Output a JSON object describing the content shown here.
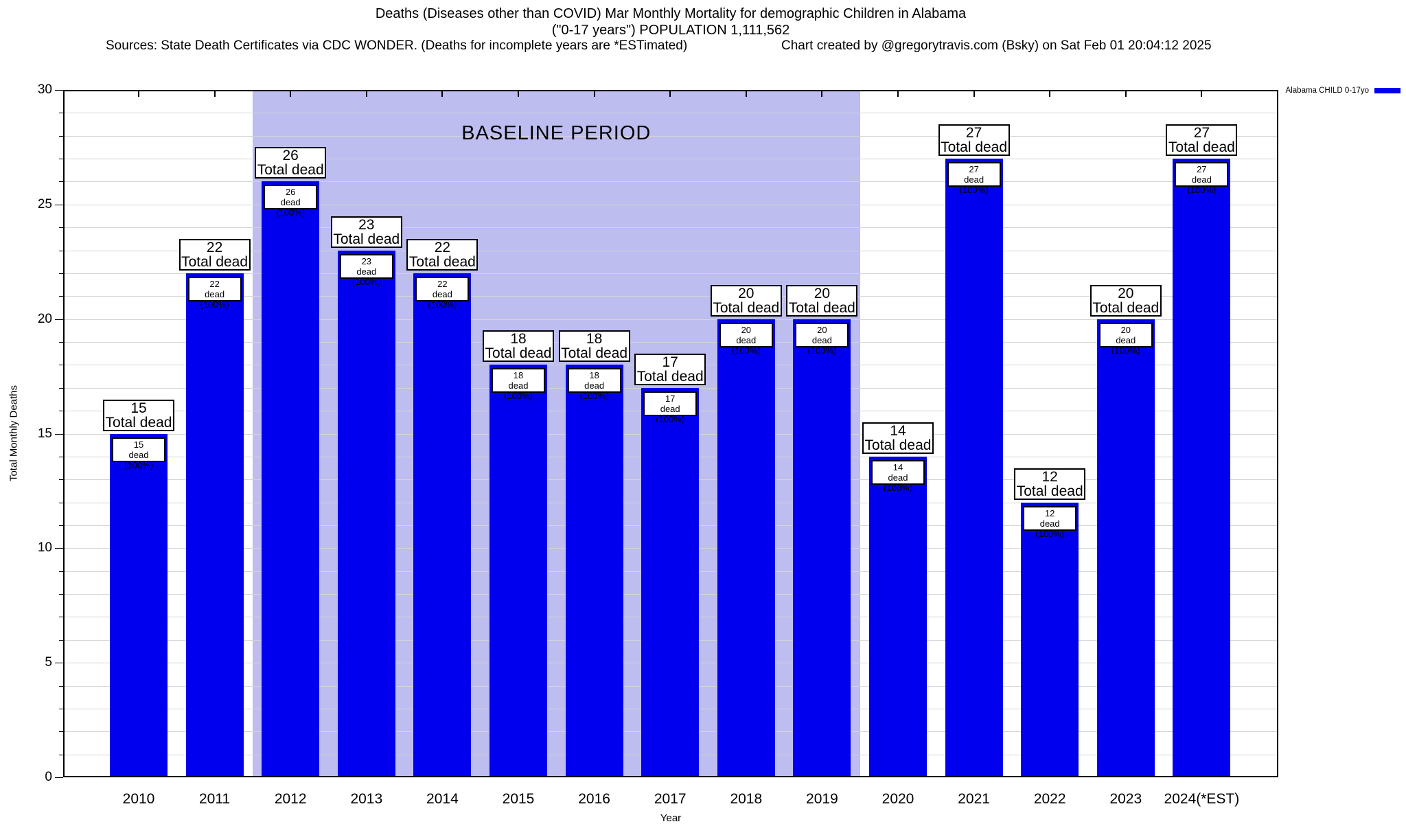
{
  "header": {
    "sources": "Sources: State Death Certificates via CDC WONDER. (Deaths for incomplete years are *ESTimated)",
    "credit": "Chart created by @gregorytravis.com (Bsky) on Sat Feb 01 20:04:12 2025"
  },
  "legend": {
    "label": "Alabama CHILD 0-17yo",
    "swatch_color": "#0000ee"
  },
  "chart_data": {
    "type": "bar",
    "title": "Deaths (Diseases other than COVID) Mar Monthly Mortality for demographic Children in Alabama",
    "subtitle": "(\"0-17 years\") POPULATION 1,111,562",
    "xlabel": "Year",
    "ylabel": "Total Monthly Deaths",
    "ylim": [
      0,
      30
    ],
    "y_major_ticks": [
      0,
      5,
      10,
      15,
      20,
      25,
      30
    ],
    "y_minor_tick_step": 1,
    "grid": true,
    "grid_color": "#d4d4d4",
    "series_name": "Alabama CHILD 0-17yo",
    "bar_color": "#0000ee",
    "categories": [
      "2010",
      "2011",
      "2012",
      "2013",
      "2014",
      "2015",
      "2016",
      "2017",
      "2018",
      "2019",
      "2020",
      "2021",
      "2022",
      "2023",
      "2024(*EST)"
    ],
    "values": [
      15,
      22,
      26,
      23,
      22,
      18,
      18,
      17,
      20,
      20,
      14,
      27,
      12,
      20,
      27
    ],
    "annotations": {
      "total_suffix": "Total dead",
      "inbar_suffix": "dead (100%)"
    },
    "baseline_region": {
      "label": "BASELINE PERIOD",
      "start_category": "2012",
      "end_category": "2019",
      "color": "#bdbdf0"
    }
  }
}
